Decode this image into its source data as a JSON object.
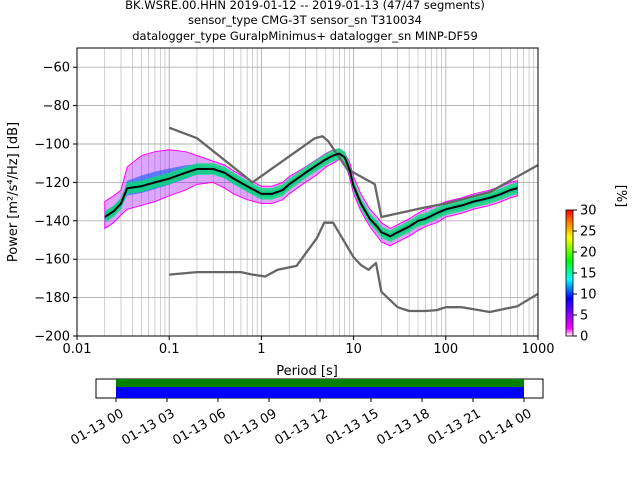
{
  "title_lines": [
    "BK.WSRE.00.HHN   2019-01-12 -- 2019-01-13  (47/47 segments)",
    "sensor_type CMG-3T sensor_sn T310034",
    "datalogger_type GuralpMinimus+ datalogger_sn MINP-DF59"
  ],
  "colorbar": {
    "label": "[%]",
    "ticks": [
      "0",
      "5",
      "10",
      "15",
      "20",
      "25",
      "30"
    ],
    "range": [
      0,
      30
    ],
    "colors": [
      "#ffffff",
      "#ff00ff",
      "#0000ff",
      "#00ffff",
      "#00ff00",
      "#ffff00",
      "#ff7f00",
      "#ff0000"
    ]
  },
  "timeline": {
    "ticks": [
      "01-13 00",
      "01-13 03",
      "01-13 06",
      "01-13 09",
      "01-13 12",
      "01-13 15",
      "01-13 18",
      "01-13 21",
      "01-14 00"
    ],
    "coverage_colors": [
      "#008000",
      "#0000ff"
    ]
  },
  "chart_data": {
    "type": "line",
    "title": "BK.WSRE.00.HHN   2019-01-12 -- 2019-01-13  (47/47 segments)",
    "xlabel": "Period [s]",
    "ylabel": "Power [m²/s⁴/Hz] [dB]",
    "x_scale": "log",
    "xlim": [
      0.01,
      1000
    ],
    "ylim": [
      -200,
      -50
    ],
    "grid": true,
    "x_ticks": [
      "0.01",
      "0.1",
      "1",
      "10",
      "100",
      "1000"
    ],
    "y_ticks": [
      "−60",
      "−80",
      "−100",
      "−120",
      "−140",
      "−160",
      "−180",
      "−200"
    ],
    "series": [
      {
        "color": "#000000",
        "x": [
          0.02,
          0.025,
          0.03,
          0.035,
          0.05,
          0.07,
          0.1,
          0.15,
          0.2,
          0.3,
          0.4,
          0.5,
          0.7,
          1.0,
          1.3,
          1.7,
          2.0,
          3.0,
          4.0,
          5.0,
          6.0,
          7.0,
          8.0,
          9.0,
          10,
          12,
          15,
          18,
          20,
          25,
          30,
          40,
          50,
          60,
          80,
          100,
          150,
          200,
          300,
          400,
          500,
          600
        ],
        "y": [
          -138,
          -135,
          -131,
          -123,
          -122,
          -120,
          -118,
          -115,
          -113,
          -113,
          -115,
          -118,
          -122,
          -126,
          -126,
          -124,
          -121,
          -115,
          -111,
          -108,
          -106,
          -105,
          -107,
          -113,
          -122,
          -131,
          -139,
          -143,
          -146,
          -148,
          -146,
          -143,
          -140,
          -139,
          -136,
          -134,
          -132,
          -130,
          -128,
          -126,
          -124,
          -123
        ]
      },
      {
        "color": "#666666",
        "x": [
          0.1,
          0.2,
          0.8,
          3.8,
          4.6,
          5.3,
          8.5,
          17,
          20,
          60,
          100,
          300,
          1000
        ],
        "y": [
          -91.5,
          -97,
          -120,
          -97,
          -96,
          -98.5,
          -113,
          -121,
          -138,
          -133,
          -131,
          -125,
          -111
        ]
      },
      {
        "color": "#666666",
        "x": [
          0.1,
          0.2,
          0.6,
          0.8,
          1.1,
          1.5,
          2.4,
          4.0,
          4.8,
          6,
          10,
          12,
          14.5,
          17.5,
          20,
          30,
          40,
          60,
          80,
          100,
          150,
          300,
          600,
          1000
        ],
        "y": [
          -168,
          -166.7,
          -166.7,
          -168,
          -169,
          -165.5,
          -163.5,
          -149,
          -141,
          -141,
          -159,
          -163,
          -165.5,
          -162,
          -177,
          -185,
          -187,
          -187,
          -186.5,
          -185,
          -185,
          -187.5,
          -184.5,
          -178
        ]
      }
    ],
    "density_band": {
      "x": [
        0.02,
        0.025,
        0.03,
        0.035,
        0.05,
        0.07,
        0.1,
        0.15,
        0.2,
        0.3,
        0.4,
        0.5,
        0.7,
        1.0,
        1.3,
        1.7,
        2.0,
        3.0,
        4.0,
        5.0,
        6.0,
        7.0,
        8.0,
        9.0,
        10,
        12,
        15,
        18,
        20,
        25,
        30,
        40,
        50,
        60,
        80,
        100,
        150,
        200,
        300,
        400,
        500,
        600
      ],
      "upper": [
        -130,
        -127,
        -124,
        -112,
        -106,
        -104,
        -103,
        -104,
        -106,
        -109,
        -111,
        -114,
        -118,
        -122,
        -122,
        -120,
        -117,
        -112,
        -108,
        -105,
        -103,
        -103,
        -105,
        -109,
        -117,
        -126,
        -134,
        -138,
        -141,
        -144,
        -142,
        -139,
        -136,
        -134,
        -132,
        -130,
        -128,
        -126,
        -124,
        -122,
        -120,
        -119
      ],
      "lower": [
        -144,
        -141,
        -137,
        -134,
        -132,
        -130,
        -127,
        -124,
        -121,
        -120,
        -123,
        -126,
        -129,
        -131,
        -131,
        -129,
        -126,
        -120,
        -116,
        -112,
        -110,
        -108,
        -110,
        -117,
        -126,
        -135,
        -143,
        -148,
        -151,
        -153,
        -151,
        -148,
        -145,
        -143,
        -141,
        -138,
        -136,
        -134,
        -132,
        -130,
        -128,
        -127
      ]
    }
  }
}
